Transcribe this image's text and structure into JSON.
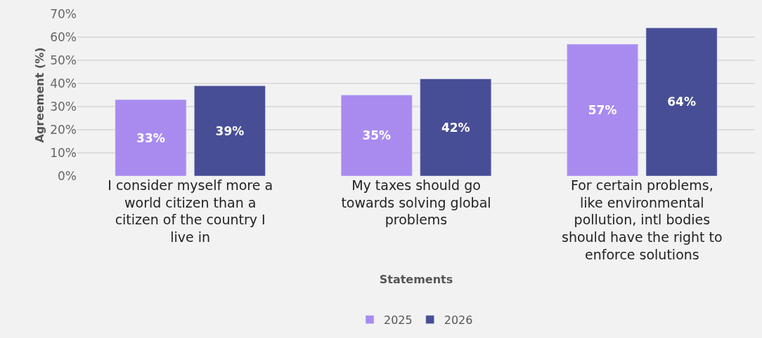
{
  "chart_data": {
    "type": "bar",
    "xlabel": "Statements",
    "ylabel": "Agreement (%)",
    "categories": [
      "I consider myself more a world citizen than a citizen of the country I live in",
      "My taxes should go towards solving global problems",
      "For certain problems, like environmental pollution, intl bodies should have the right to enforce solutions"
    ],
    "series": [
      {
        "name": "2025",
        "color": "#a98bf0",
        "values": [
          33,
          35,
          57
        ],
        "value_labels": [
          "33%",
          "35%",
          "57%"
        ]
      },
      {
        "name": "2026",
        "color": "#474e96",
        "values": [
          39,
          42,
          64
        ],
        "value_labels": [
          "39%",
          "42%",
          "64%"
        ]
      }
    ],
    "ylim": [
      0,
      70
    ],
    "yticks": [
      {
        "value": 0,
        "label": "0%"
      },
      {
        "value": 10,
        "label": "10%"
      },
      {
        "value": 20,
        "label": "20%"
      },
      {
        "value": 30,
        "label": "30%"
      },
      {
        "value": 40,
        "label": "40%"
      },
      {
        "value": 50,
        "label": "50%"
      },
      {
        "value": 60,
        "label": "60%"
      },
      {
        "value": 70,
        "label": "70%"
      }
    ],
    "grid": "y",
    "legend": "bottom"
  }
}
